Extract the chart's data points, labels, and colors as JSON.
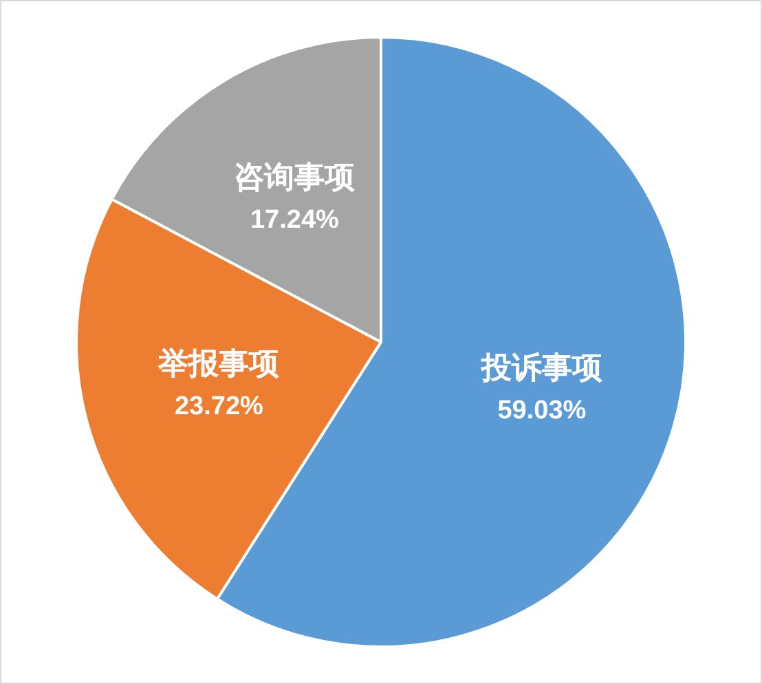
{
  "chart_data": {
    "type": "pie",
    "categories": [
      "投诉事项",
      "举报事项",
      "咨询事项"
    ],
    "values": [
      59.03,
      23.72,
      17.24
    ],
    "value_labels": [
      "59.03%",
      "23.72%",
      "17.24%"
    ],
    "colors": [
      "#5b9bd5",
      "#ed7d31",
      "#a5a5a5"
    ],
    "legend": false
  }
}
